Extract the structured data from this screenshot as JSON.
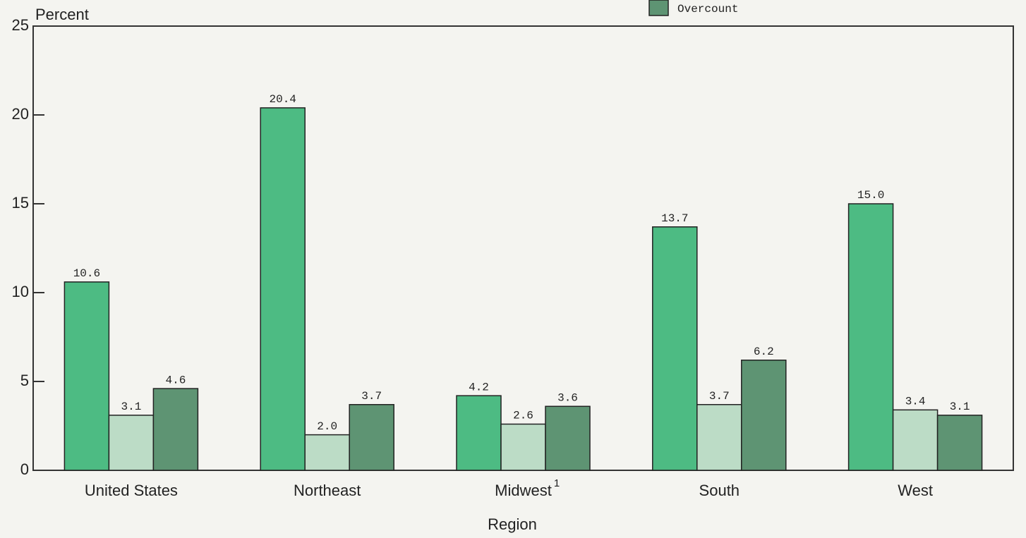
{
  "chart_data": {
    "type": "bar",
    "ylabel": "Percent",
    "xlabel": "Region",
    "categories": [
      "United States",
      "Northeast",
      "Midwest",
      "South",
      "West"
    ],
    "category_notes": [
      null,
      null,
      "1",
      null,
      null
    ],
    "series": [
      {
        "color": "#4dbb83",
        "values": [
          10.6,
          20.4,
          4.2,
          13.7,
          15.0
        ],
        "value_labels": [
          "10.6",
          "20.4",
          "4.2",
          "13.7",
          "15.0"
        ]
      },
      {
        "color": "#bcdcc6",
        "values": [
          3.1,
          2.0,
          2.6,
          3.7,
          3.4
        ],
        "value_labels": [
          "3.1",
          "2.0",
          "2.6",
          "3.7",
          "3.4"
        ]
      },
      {
        "name": "Overcount",
        "color": "#5e9473",
        "values": [
          4.6,
          3.7,
          3.6,
          6.2,
          3.1
        ],
        "value_labels": [
          "4.6",
          "3.7",
          "3.6",
          "6.2",
          "3.1"
        ]
      }
    ],
    "ylim": [
      0,
      25
    ],
    "yticks": [
      0,
      5,
      10,
      15,
      20,
      25
    ]
  }
}
